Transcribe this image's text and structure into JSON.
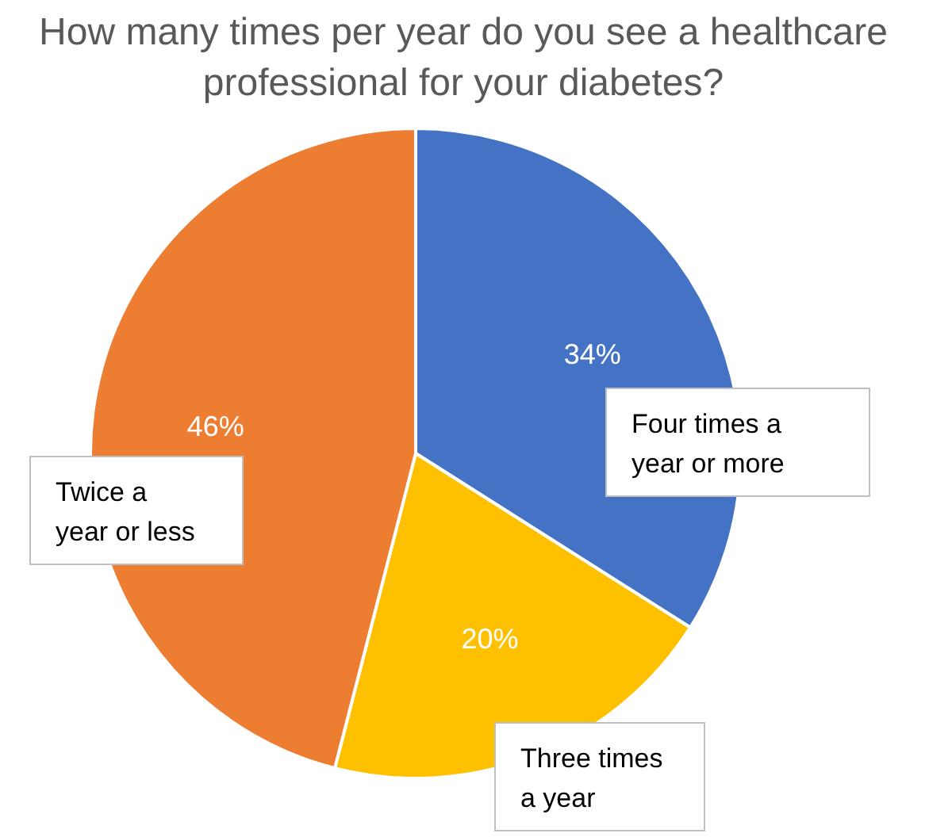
{
  "chart_data": {
    "type": "pie",
    "title": "How many times per year do you see a healthcare professional for your diabetes?",
    "categories": [
      "Four times a year or more",
      "Three times a year",
      "Twice a year or less"
    ],
    "values": [
      34,
      20,
      46
    ],
    "colors": [
      "#4472c4",
      "#ffc000",
      "#ed7d31"
    ],
    "value_labels": [
      "34%",
      "20%",
      "46%"
    ]
  }
}
